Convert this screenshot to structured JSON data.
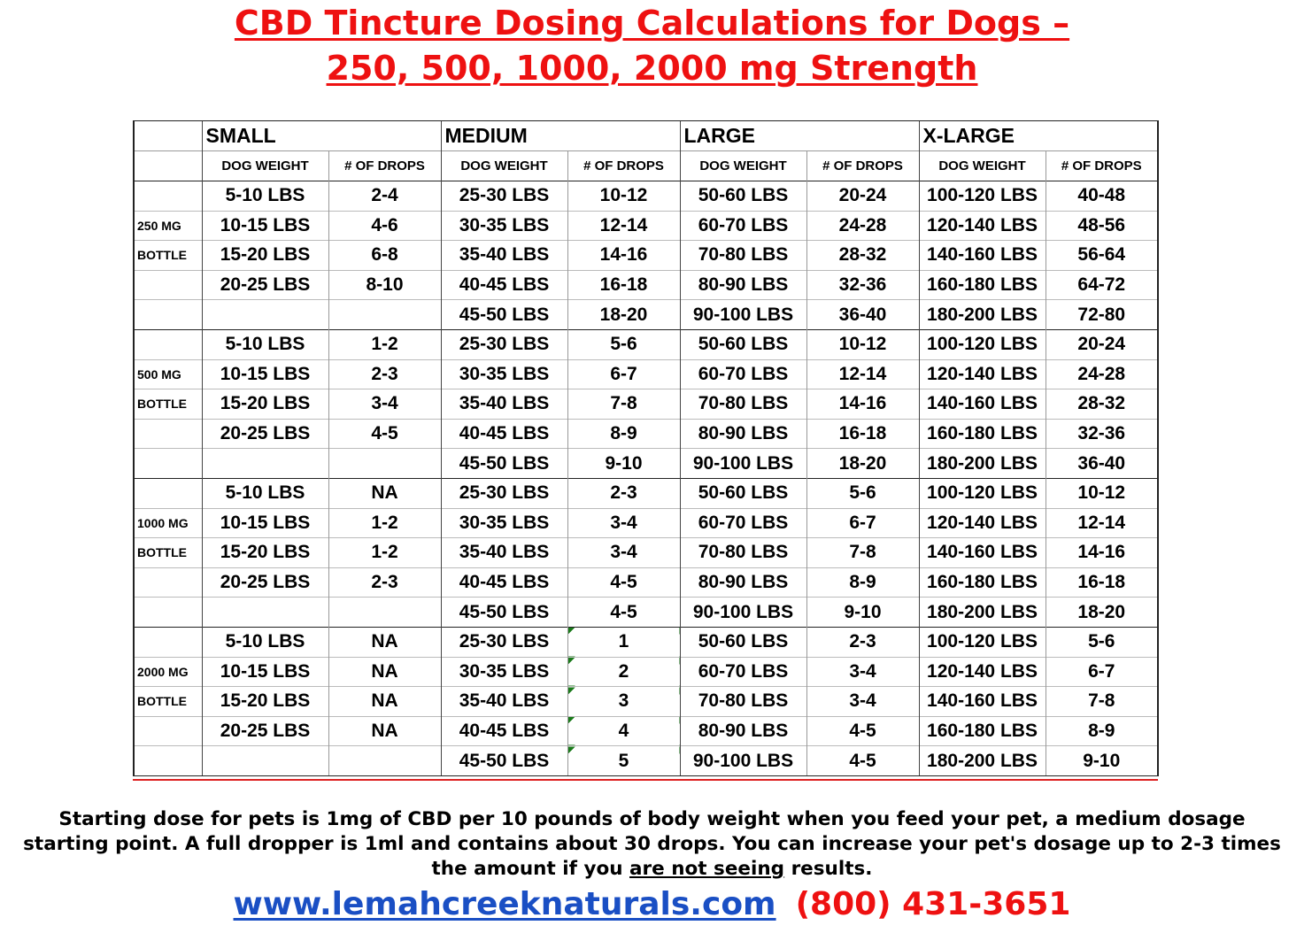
{
  "title": {
    "line1": "CBD Tincture Dosing Calculations for Dogs –",
    "line2": "250, 500, 1000, 2000 mg Strength"
  },
  "headers": {
    "groups": [
      "SMALL",
      "MEDIUM",
      "LARGE",
      "X-LARGE"
    ],
    "weight": "DOG WEIGHT",
    "drops": "# OF DROPS"
  },
  "blocks": [
    {
      "label1": "250 MG",
      "label2": "BOTTLE",
      "small": [
        [
          "5-10 LBS",
          "2-4"
        ],
        [
          "10-15 LBS",
          "4-6"
        ],
        [
          "15-20 LBS",
          "6-8"
        ],
        [
          "20-25 LBS",
          "8-10"
        ]
      ],
      "medium": [
        [
          "25-30 LBS",
          "10-12"
        ],
        [
          "30-35 LBS",
          "12-14"
        ],
        [
          "35-40 LBS",
          "14-16"
        ],
        [
          "40-45 LBS",
          "16-18"
        ],
        [
          "45-50 LBS",
          "18-20"
        ]
      ],
      "large": [
        [
          "50-60 LBS",
          "20-24"
        ],
        [
          "60-70 LBS",
          "24-28"
        ],
        [
          "70-80 LBS",
          "28-32"
        ],
        [
          "80-90 LBS",
          "32-36"
        ],
        [
          "90-100 LBS",
          "36-40"
        ]
      ],
      "xlarge": [
        [
          "100-120 LBS",
          "40-48"
        ],
        [
          "120-140 LBS",
          "48-56"
        ],
        [
          "140-160 LBS",
          "56-64"
        ],
        [
          "160-180 LBS",
          "64-72"
        ],
        [
          "180-200 LBS",
          "72-80"
        ]
      ]
    },
    {
      "label1": "500 MG",
      "label2": "BOTTLE",
      "small": [
        [
          "5-10 LBS",
          "1-2"
        ],
        [
          "10-15 LBS",
          "2-3"
        ],
        [
          "15-20 LBS",
          "3-4"
        ],
        [
          "20-25 LBS",
          "4-5"
        ]
      ],
      "medium": [
        [
          "25-30 LBS",
          "5-6"
        ],
        [
          "30-35 LBS",
          "6-7"
        ],
        [
          "35-40 LBS",
          "7-8"
        ],
        [
          "40-45 LBS",
          "8-9"
        ],
        [
          "45-50 LBS",
          "9-10"
        ]
      ],
      "large": [
        [
          "50-60 LBS",
          "10-12"
        ],
        [
          "60-70 LBS",
          "12-14"
        ],
        [
          "70-80 LBS",
          "14-16"
        ],
        [
          "80-90 LBS",
          "16-18"
        ],
        [
          "90-100 LBS",
          "18-20"
        ]
      ],
      "xlarge": [
        [
          "100-120 LBS",
          "20-24"
        ],
        [
          "120-140 LBS",
          "24-28"
        ],
        [
          "140-160 LBS",
          "28-32"
        ],
        [
          "160-180 LBS",
          "32-36"
        ],
        [
          "180-200 LBS",
          "36-40"
        ]
      ]
    },
    {
      "label1": "1000 MG",
      "label2": "BOTTLE",
      "small": [
        [
          "5-10 LBS",
          "NA"
        ],
        [
          "10-15 LBS",
          "1-2"
        ],
        [
          "15-20 LBS",
          "1-2"
        ],
        [
          "20-25 LBS",
          "2-3"
        ]
      ],
      "medium": [
        [
          "25-30 LBS",
          "2-3"
        ],
        [
          "30-35 LBS",
          "3-4"
        ],
        [
          "35-40 LBS",
          "3-4"
        ],
        [
          "40-45 LBS",
          "4-5"
        ],
        [
          "45-50 LBS",
          "4-5"
        ]
      ],
      "large": [
        [
          "50-60 LBS",
          "5-6"
        ],
        [
          "60-70 LBS",
          "6-7"
        ],
        [
          "70-80 LBS",
          "7-8"
        ],
        [
          "80-90 LBS",
          "8-9"
        ],
        [
          "90-100 LBS",
          "9-10"
        ]
      ],
      "xlarge": [
        [
          "100-120 LBS",
          "10-12"
        ],
        [
          "120-140 LBS",
          "12-14"
        ],
        [
          "140-160 LBS",
          "14-16"
        ],
        [
          "160-180 LBS",
          "16-18"
        ],
        [
          "180-200 LBS",
          "18-20"
        ]
      ]
    },
    {
      "label1": "2000 MG",
      "label2": "BOTTLE",
      "small": [
        [
          "5-10 LBS",
          "NA"
        ],
        [
          "10-15 LBS",
          "NA"
        ],
        [
          "15-20 LBS",
          "NA"
        ],
        [
          "20-25 LBS",
          "NA"
        ]
      ],
      "medium": [
        [
          "25-30 LBS",
          "1"
        ],
        [
          "30-35 LBS",
          "2"
        ],
        [
          "35-40 LBS",
          "3"
        ],
        [
          "40-45 LBS",
          "4"
        ],
        [
          "45-50 LBS",
          "5"
        ]
      ],
      "large": [
        [
          "50-60 LBS",
          "2-3"
        ],
        [
          "60-70 LBS",
          "3-4"
        ],
        [
          "70-80 LBS",
          "3-4"
        ],
        [
          "80-90 LBS",
          "4-5"
        ],
        [
          "90-100 LBS",
          "4-5"
        ]
      ],
      "xlarge": [
        [
          "100-120 LBS",
          "5-6"
        ],
        [
          "120-140 LBS",
          "6-7"
        ],
        [
          "140-160 LBS",
          "7-8"
        ],
        [
          "160-180 LBS",
          "8-9"
        ],
        [
          "180-200 LBS",
          "9-10"
        ]
      ]
    }
  ],
  "note": {
    "line1": "Starting dose for pets is 1mg of CBD per 10 pounds of body weight when you feed your pet, a medium dosage",
    "line2": "starting point.  A full dropper is 1ml and contains about 30 drops. You can increase your pet's dosage up to 2-3 times",
    "line3_pre": "the amount if you ",
    "line3_ul": "are not seeing",
    "line3_post": " results."
  },
  "footer": {
    "url": "www.lemahcreeknaturals.com",
    "phone": "(800) 431-3651"
  },
  "colors": {
    "title_red": "#ee1111",
    "link_blue": "#1a4fc4",
    "rule_red": "#dd2222",
    "marker_green": "#1a7a1a"
  }
}
